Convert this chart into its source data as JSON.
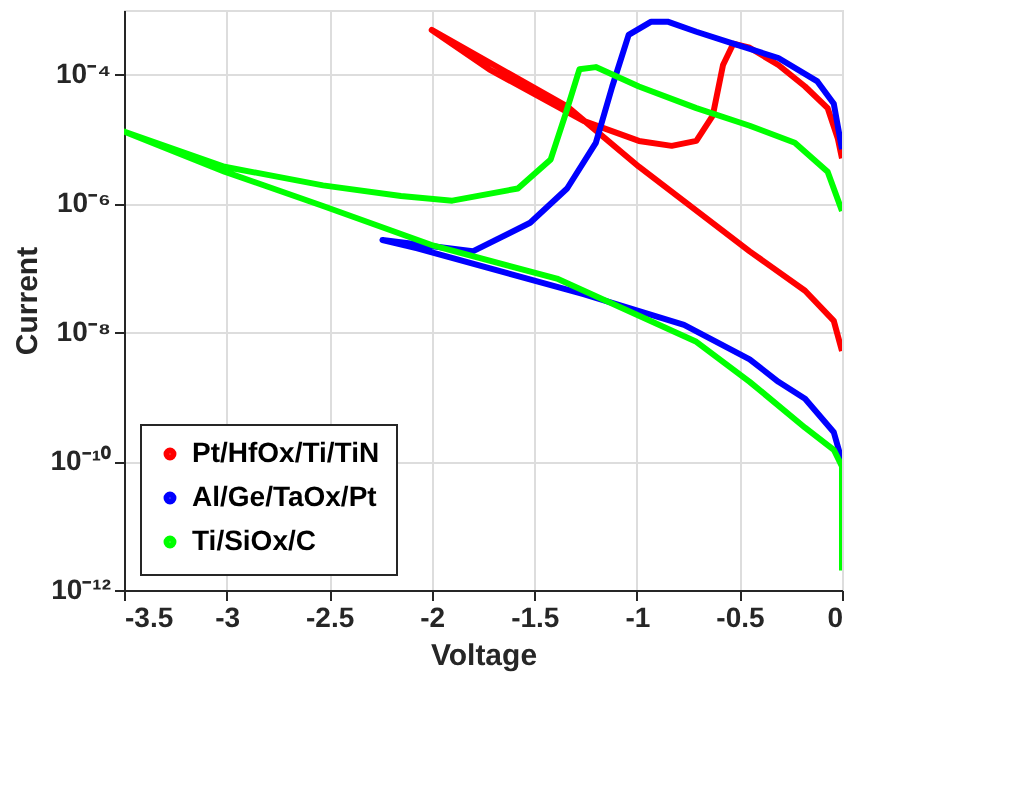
{
  "chart_data": {
    "type": "line",
    "xlabel": "Voltage",
    "ylabel": "Current",
    "log": "y",
    "grid": true,
    "legend": "bottom left",
    "marker": "none",
    "line_style": "solid",
    "xlim": [
      -3.5,
      0
    ],
    "xticks": [
      -3.5,
      -3,
      -2.5,
      -2,
      -1.5,
      -1,
      -0.5,
      0
    ],
    "ylim": [
      1e-12,
      0.001
    ],
    "yticks": [
      {
        "value": 1e-12,
        "label": "10⁻¹²"
      },
      {
        "value": 1e-10,
        "label": "10⁻¹⁰"
      },
      {
        "value": 1e-08,
        "label": "10⁻⁸"
      },
      {
        "value": 1e-06,
        "label": "10⁻⁶"
      },
      {
        "value": 0.0001,
        "label": "10⁻⁴"
      }
    ],
    "series": [
      {
        "name": "Pt/HfOx/Ti/TiN",
        "color": "#ff0000",
        "x": [
          0,
          -0.04,
          -0.18,
          -0.45,
          -0.99,
          -1.34,
          -2,
          -1.72,
          -1.26,
          -0.99,
          -0.83,
          -0.71,
          -0.63,
          -0.58,
          -0.53,
          -0.45,
          -0.31,
          -0.18,
          -0.07,
          -0.02,
          0
        ],
        "values": [
          5.1e-09,
          1.5e-08,
          4.4e-08,
          1.8e-07,
          3.7e-06,
          3.2e-05,
          0.00049,
          0.00012,
          1.9e-05,
          9.3e-06,
          7.8e-06,
          9.3e-06,
          2.3e-05,
          0.00014,
          0.0003,
          0.00026,
          0.00014,
          6.5e-05,
          3e-05,
          1e-05,
          5e-06
        ]
      },
      {
        "name": "Al/Ge/TaOx/Pt",
        "color": "#0000ff",
        "x": [
          0,
          -0.04,
          -0.18,
          -0.31,
          -0.45,
          -0.77,
          -1.26,
          -2.07,
          -2.24,
          -1.8,
          -1.52,
          -1.34,
          -1.2,
          -1.12,
          -1.04,
          -0.93,
          -0.85,
          -0.71,
          -0.53,
          -0.31,
          -0.12,
          -0.04,
          0
        ],
        "values": [
          1e-10,
          2.8e-10,
          9.3e-10,
          1.7e-09,
          3.8e-09,
          1.3e-08,
          3.9e-08,
          2e-07,
          2.7e-07,
          1.8e-07,
          5e-07,
          1.7e-06,
          8.7e-06,
          6.5e-05,
          0.00041,
          0.00066,
          0.00066,
          0.00046,
          0.0003,
          0.00018,
          7.8e-05,
          3.5e-05,
          6.9e-06
        ]
      },
      {
        "name": "Ti/SiOx/C",
        "color": "#00ff00",
        "x": [
          0,
          0,
          -0.04,
          -0.18,
          -0.45,
          -0.71,
          -1.39,
          -1.99,
          -2.53,
          -3.01,
          -3.5,
          -3.01,
          -2.53,
          -2.15,
          -1.9,
          -1.58,
          -1.42,
          -1.35,
          -1.28,
          -1.2,
          -0.99,
          -0.71,
          -0.45,
          -0.23,
          -0.07,
          0
        ],
        "values": [
          2e-12,
          8.3e-11,
          1.5e-10,
          3.3e-10,
          1.7e-09,
          7.1e-09,
          6.8e-08,
          2.2e-07,
          9.1e-07,
          3.1e-06,
          1.3e-05,
          3.7e-06,
          1.9e-06,
          1.3e-06,
          1.1e-06,
          1.7e-06,
          4.8e-06,
          2.3e-05,
          0.00012,
          0.00013,
          6.5e-05,
          3e-05,
          1.6e-05,
          8.7e-06,
          3.1e-06,
          7.6e-07
        ]
      }
    ]
  }
}
